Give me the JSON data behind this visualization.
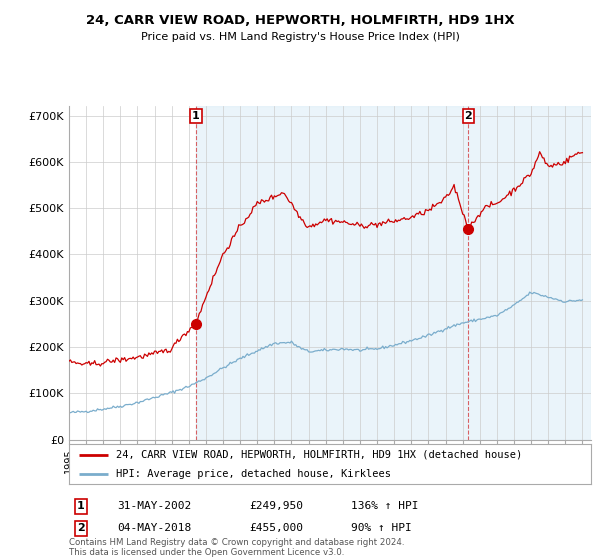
{
  "title": "24, CARR VIEW ROAD, HEPWORTH, HOLMFIRTH, HD9 1HX",
  "subtitle": "Price paid vs. HM Land Registry's House Price Index (HPI)",
  "legend_line1": "24, CARR VIEW ROAD, HEPWORTH, HOLMFIRTH, HD9 1HX (detached house)",
  "legend_line2": "HPI: Average price, detached house, Kirklees",
  "annotation1": {
    "num": "1",
    "date": "31-MAY-2002",
    "price": "£249,950",
    "hpi": "136% ↑ HPI"
  },
  "annotation2": {
    "num": "2",
    "date": "04-MAY-2018",
    "price": "£455,000",
    "hpi": "90% ↑ HPI"
  },
  "footer": "Contains HM Land Registry data © Crown copyright and database right 2024.\nThis data is licensed under the Open Government Licence v3.0.",
  "red_color": "#cc0000",
  "blue_color": "#7aadcc",
  "fill_color": "#ddeeff",
  "background_color": "#ffffff",
  "ylim": [
    0,
    720000
  ],
  "yticks": [
    0,
    100000,
    200000,
    300000,
    400000,
    500000,
    600000,
    700000
  ],
  "ytick_labels": [
    "£0",
    "£100K",
    "£200K",
    "£300K",
    "£400K",
    "£500K",
    "£600K",
    "£700K"
  ],
  "marker1_x": 2002.42,
  "marker1_y": 249950,
  "marker2_x": 2018.34,
  "marker2_y": 455000,
  "xmin": 1995.0,
  "xmax": 2025.5
}
